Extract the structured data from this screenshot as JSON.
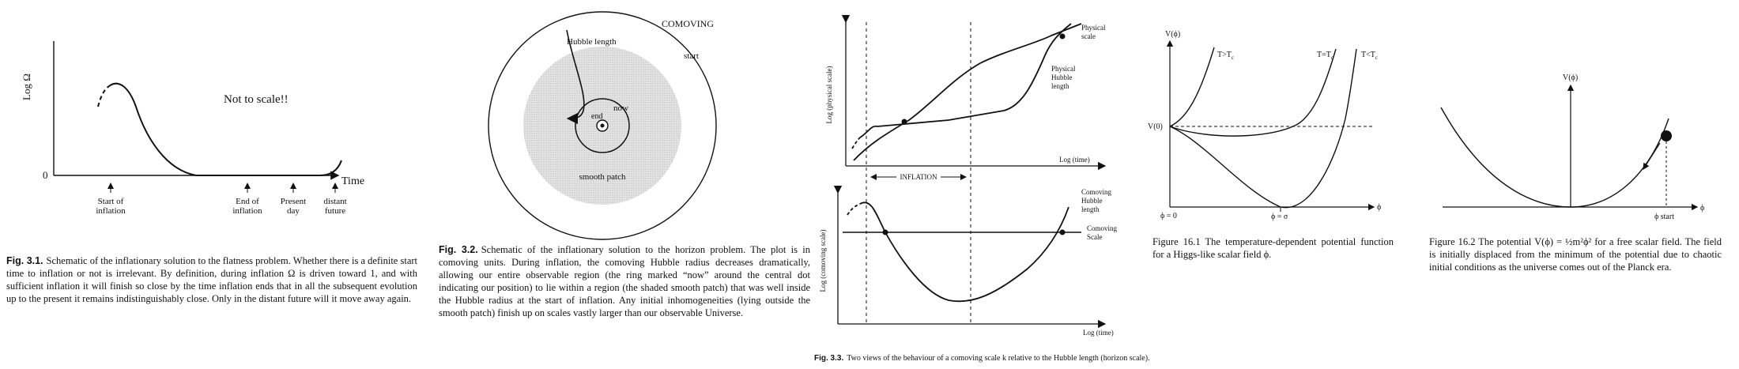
{
  "fig31": {
    "ylabel": "Log Ω",
    "zero": "0",
    "xlabel": "Time",
    "note": "Not to scale!!",
    "labels": [
      [
        "Start of",
        "inflation"
      ],
      [
        "End of",
        "inflation"
      ],
      [
        "Present",
        "day"
      ],
      [
        "distant",
        "future"
      ]
    ],
    "cap_label": "Fig. 3.1.",
    "cap_text": "Schematic of the inflationary solution to the flatness problem. Whether there is a definite start time to inflation or not is irrelevant. By definition, during inflation Ω is driven toward 1, and with sufficient inflation it will finish so close by the time inflation ends that in all the subsequent evolution up to the present it remains indistinguishably close. Only in the distant future will it move away again."
  },
  "fig32": {
    "comoving": "COMOVING",
    "start": "start",
    "hubble": "Hubble length",
    "now": "now",
    "end": "end",
    "smooth": "smooth patch",
    "cap_label": "Fig. 3.2.",
    "cap_text": "Schematic of the inflationary solution to the horizon problem. The plot is in comoving units. During inflation, the comoving Hubble radius decreases dramatically, allowing our entire observable region (the ring marked “now” around the central dot indicating our position) to lie within a region (the shaded smooth patch) that was well inside the Hubble radius at the start of inflation. Any initial inhomogeneities (lying outside the smooth patch) finish up on scales vastly larger than our observable Universe."
  },
  "fig33": {
    "top_ylabel": "Log (physical scale)",
    "top_xlabel": "Log (time)",
    "physical_scale": [
      "Physical",
      "scale"
    ],
    "physical_hubble": [
      "Physical",
      "Hubble",
      "length"
    ],
    "inflation": "INFLATION",
    "bottom_ylabel": "Log (comoving scale)",
    "bottom_xlabel": "Log (time)",
    "comoving_hubble": [
      "Comoving",
      "Hubble",
      "length"
    ],
    "comoving_scale": [
      "Comoving",
      "Scale"
    ],
    "cap_label": "Fig. 3.3.",
    "cap_text": "Two views of the behaviour of a comoving scale k relative to the Hubble length (horizon scale)."
  },
  "fig161": {
    "ylabel": "V(ϕ)",
    "v0": "V(0)",
    "curve_labels": [
      "T>T",
      "T=T",
      "T<T"
    ],
    "sub": "c",
    "x0": "ϕ = 0",
    "xsigma": "ϕ = σ",
    "xaxis": "ϕ",
    "cap_text": "Figure 16.1 The temperature-dependent potential function for a Higgs-like scalar field ϕ."
  },
  "fig162": {
    "ylabel": "V(ϕ)",
    "xaxis": "ϕ",
    "xstart": "ϕ start",
    "cap_text": "Figure 16.2 The potential V(ϕ) = ½m²ϕ² for a free scalar field. The field is initially displaced from the minimum of the potential due to chaotic initial conditions as the universe comes out of the Planck era."
  }
}
